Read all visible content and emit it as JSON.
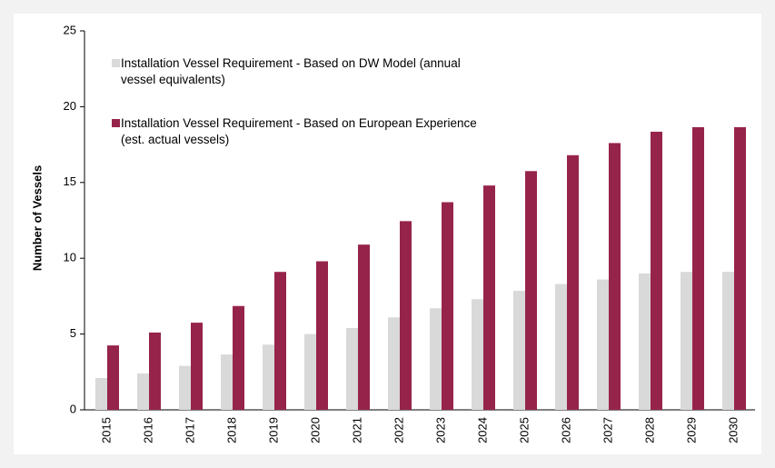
{
  "chart_data": {
    "type": "bar",
    "ylabel": "Number of Vessels",
    "categories": [
      "2015",
      "2016",
      "2017",
      "2018",
      "2019",
      "2020",
      "2021",
      "2022",
      "2023",
      "2024",
      "2025",
      "2026",
      "2027",
      "2028",
      "2029",
      "2030"
    ],
    "series": [
      {
        "name": "Installation Vessel Requirement - Based on DW Model (annual vessel equivalents)",
        "color": "#d9d9d9",
        "values": [
          2.1,
          2.4,
          2.9,
          3.65,
          4.3,
          5.0,
          5.4,
          6.1,
          6.7,
          7.3,
          7.85,
          8.3,
          8.6,
          9.0,
          9.1,
          9.1
        ]
      },
      {
        "name": "Installation Vessel Requirement - Based on European Experience (est. actual vessels)",
        "color": "#96244a",
        "values": [
          4.25,
          5.1,
          5.75,
          6.85,
          9.1,
          9.8,
          10.9,
          12.45,
          13.7,
          14.8,
          15.75,
          16.8,
          17.6,
          18.35,
          18.65,
          18.65
        ]
      }
    ],
    "ylim": [
      0,
      25
    ],
    "yticks": [
      0,
      5,
      10,
      15,
      20,
      25
    ],
    "grid": false,
    "legend": "upper left"
  }
}
